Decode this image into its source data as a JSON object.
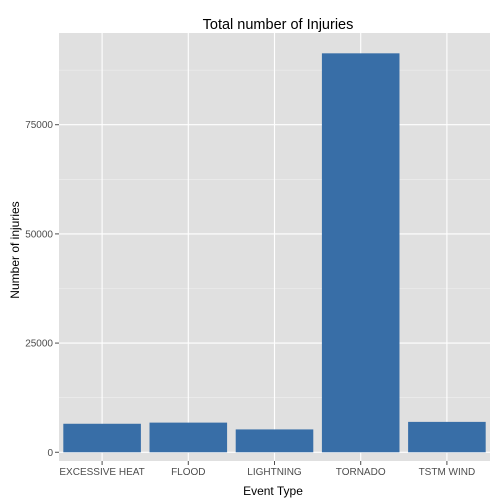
{
  "chart_data": {
    "type": "bar",
    "title": "Total number of Injuries",
    "xlabel": "Event Type",
    "ylabel": "Number of injuries",
    "categories": [
      "EXCESSIVE HEAT",
      "FLOOD",
      "LIGHTNING",
      "TORNADO",
      "TSTM WIND"
    ],
    "values": [
      6525,
      6789,
      5230,
      91346,
      6957
    ],
    "ylim": [
      -2000,
      96000
    ],
    "yticks": [
      0,
      25000,
      50000,
      75000
    ],
    "grid": true,
    "colors": {
      "panel": "#e0e0e0",
      "bar": "#386ea7",
      "grid_major": "#ffffff",
      "grid_minor": "#f0f0f0"
    }
  }
}
